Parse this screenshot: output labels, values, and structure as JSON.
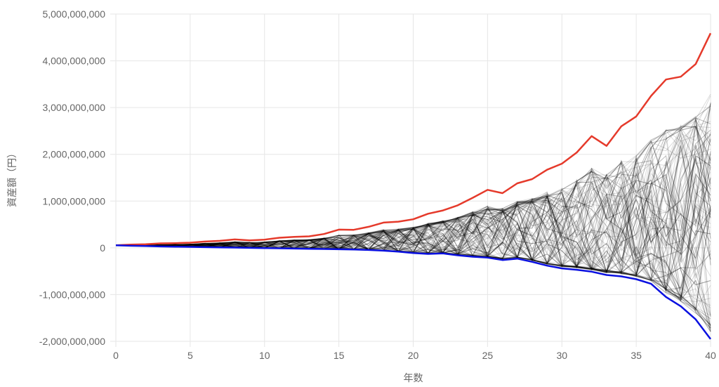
{
  "chart_data": {
    "type": "line",
    "title": "",
    "xlabel": "年数",
    "ylabel": "資産額（円）",
    "xlim": [
      0,
      40
    ],
    "ylim": [
      -2000000000,
      5000000000
    ],
    "x_ticks": [
      0,
      5,
      10,
      15,
      20,
      25,
      30,
      35,
      40
    ],
    "x_tick_labels": [
      "0",
      "5",
      "10",
      "15",
      "20",
      "25",
      "30",
      "35",
      "40"
    ],
    "y_ticks": [
      5000000000,
      4000000000,
      3000000000,
      2000000000,
      1000000000,
      0,
      -1000000000,
      -2000000000
    ],
    "y_tick_labels": [
      "5,000,000,000",
      "4,000,000,000",
      "3,000,000,000",
      "2,000,000,000",
      "1,000,000,000",
      "0",
      "-1,000,000,000",
      "-2,000,000,000"
    ],
    "grid": true,
    "legend": "none",
    "colors": {
      "max": "#e53a2b",
      "min": "#0a10e0",
      "simulations": "#000000",
      "grid": "#e6e6e6"
    },
    "series": [
      {
        "x": [
          0,
          1,
          2,
          3,
          4,
          5,
          6,
          7,
          8,
          9,
          10,
          11,
          12,
          13,
          14,
          15,
          16,
          17,
          18,
          19,
          20,
          21,
          22,
          23,
          24,
          25,
          26,
          27,
          28,
          29,
          30,
          31,
          32,
          33,
          34,
          35,
          36,
          37,
          38,
          39,
          40
        ],
        "values": [
          55000000,
          70000000,
          78000000,
          95000000,
          100000000,
          110000000,
          135000000,
          150000000,
          180000000,
          160000000,
          175000000,
          215000000,
          235000000,
          245000000,
          295000000,
          390000000,
          385000000,
          450000000,
          540000000,
          560000000,
          610000000,
          730000000,
          800000000,
          910000000,
          1070000000,
          1240000000,
          1170000000,
          1380000000,
          1470000000,
          1670000000,
          1800000000,
          2040000000,
          2390000000,
          2180000000,
          2600000000,
          2810000000,
          3250000000,
          3600000000,
          3660000000,
          3930000000,
          4590000000
        ]
      },
      {
        "x": [
          0,
          1,
          2,
          3,
          4,
          5,
          6,
          7,
          8,
          9,
          10,
          11,
          12,
          13,
          14,
          15,
          16,
          17,
          18,
          19,
          20,
          21,
          22,
          23,
          24,
          25,
          26,
          27,
          28,
          29,
          30,
          31,
          32,
          33,
          34,
          35,
          36,
          37,
          38,
          39,
          40
        ],
        "values": [
          55000000,
          45000000,
          38000000,
          30000000,
          25000000,
          20000000,
          15000000,
          10000000,
          5000000,
          0,
          -5000000,
          -10000000,
          -15000000,
          -20000000,
          -25000000,
          -30000000,
          -35000000,
          -45000000,
          -60000000,
          -80000000,
          -110000000,
          -130000000,
          -120000000,
          -160000000,
          -190000000,
          -210000000,
          -260000000,
          -230000000,
          -300000000,
          -380000000,
          -440000000,
          -470000000,
          -510000000,
          -580000000,
          -610000000,
          -670000000,
          -770000000,
          -1050000000,
          -1250000000,
          -1530000000,
          -1950000000
        ]
      }
    ],
    "simulations": {
      "count": 150
    }
  }
}
